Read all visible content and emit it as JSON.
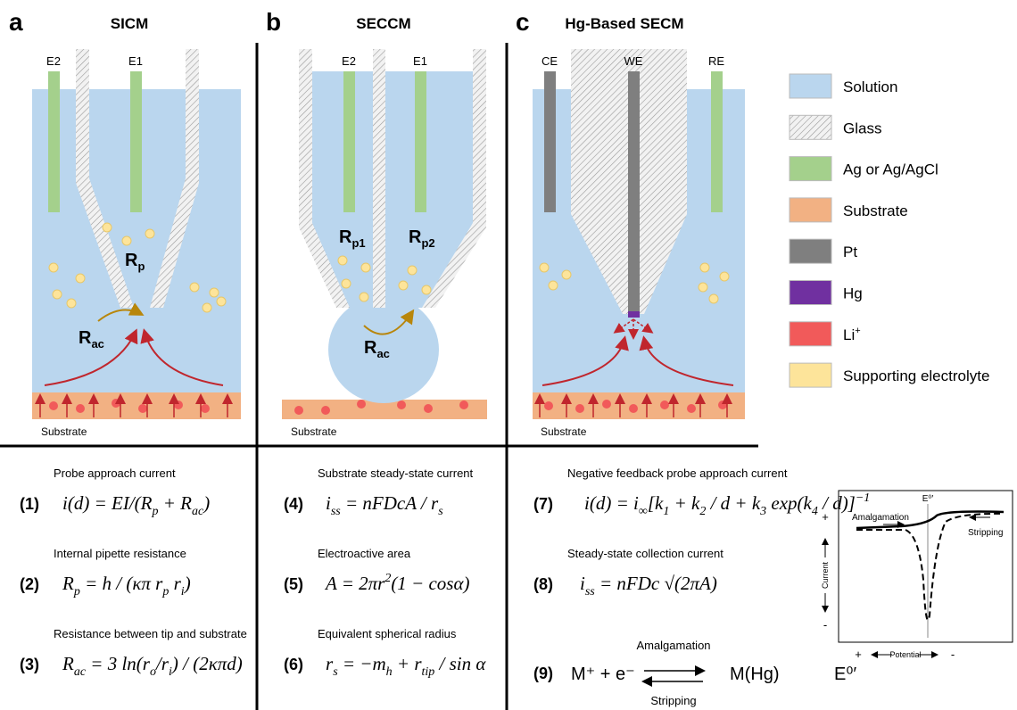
{
  "panels": [
    {
      "letter": "a",
      "title": "SICM",
      "electrodes": [
        "E2",
        "E1"
      ],
      "resistances": [
        {
          "main": "R",
          "sub": "p"
        },
        {
          "main": "R",
          "sub": "ac"
        }
      ],
      "substrate": "Substrate"
    },
    {
      "letter": "b",
      "title": "SECCM",
      "electrodes": [
        "E2",
        "E1"
      ],
      "resistances": [
        {
          "main": "R",
          "sub": "p1"
        },
        {
          "main": "R",
          "sub": "p2"
        },
        {
          "main": "R",
          "sub": "ac"
        }
      ],
      "substrate": "Substrate"
    },
    {
      "letter": "c",
      "title": "Hg-Based SECM",
      "electrodes": [
        "CE",
        "WE",
        "RE"
      ],
      "substrate": "Substrate"
    }
  ],
  "legend": [
    {
      "label": "Solution",
      "color": "#bad6ee"
    },
    {
      "label": "Glass",
      "color": "hatch"
    },
    {
      "label": "Ag or Ag/AgCl",
      "color": "#a4d08c"
    },
    {
      "label": "Substrate",
      "color": "#f2b183"
    },
    {
      "label": "Pt",
      "color": "#7f7f7f"
    },
    {
      "label": "Hg",
      "color": "#7030a0"
    },
    {
      "label": "Li",
      "sup": "+",
      "color": "#f15a5a"
    },
    {
      "label": "Supporting electrolyte",
      "color": "#fde49a"
    }
  ],
  "equations": [
    {
      "number": "(1)",
      "caption": "Probe approach current",
      "formula": [
        "i(d) = EI/(R",
        {
          "sub": "p"
        },
        " + R",
        {
          "sub": "ac"
        },
        ")"
      ]
    },
    {
      "number": "(2)",
      "caption": "Internal pipette resistance",
      "formula": [
        "R",
        {
          "sub": "p"
        },
        " = h / (κπ r",
        {
          "sub": "p"
        },
        " r",
        {
          "sub": "i"
        },
        ")"
      ]
    },
    {
      "number": "(3)",
      "caption": "Resistance between tip and substrate",
      "formula": [
        "R",
        {
          "sub": "ac"
        },
        " = 3 ln(r",
        {
          "sub": "o"
        },
        "/r",
        {
          "sub": "i"
        },
        ") / (2κπd)"
      ]
    },
    {
      "number": "(4)",
      "caption": "Substrate steady-state current",
      "formula": [
        "i",
        {
          "sub": "ss"
        },
        " = nFDcA / r",
        {
          "sub": "s"
        }
      ]
    },
    {
      "number": "(5)",
      "caption": "Electroactive area",
      "formula": [
        "A = 2πr",
        {
          "sup": "2"
        },
        "(1 − cosα)"
      ]
    },
    {
      "number": "(6)",
      "caption": "Equivalent spherical radius",
      "formula": [
        "r",
        {
          "sub": "s"
        },
        " = −m",
        {
          "sub": "h"
        },
        " + r",
        {
          "sub": "tip"
        },
        " / sin α"
      ]
    },
    {
      "number": "(7)",
      "caption": "Negative feedback probe approach current",
      "formula": [
        "i(d) = i",
        {
          "sub": "∞"
        },
        "[k",
        {
          "sub": "1"
        },
        " + k",
        {
          "sub": "2"
        },
        " / d + k",
        {
          "sub": "3"
        },
        " exp(k",
        {
          "sub": "4"
        },
        " / d)]",
        {
          "sup": "−1"
        }
      ]
    },
    {
      "number": "(8)",
      "caption": "Steady-state collection current",
      "formula": [
        "i",
        {
          "sub": "ss"
        },
        " = nFDc √(2πA)"
      ]
    }
  ],
  "reaction": {
    "number": "(9)",
    "left": "M⁺ + e⁻",
    "forward": "Amalgamation",
    "backward": "Stripping",
    "right": "M(Hg)",
    "potential": "E⁰′"
  },
  "inset": {
    "potential": "E⁰′",
    "forward": "Amalgamation",
    "backward": "Stripping",
    "y_axis": "Current",
    "x_axis": "Potential",
    "y_plus": "+",
    "y_minus": "-",
    "x_plus": "+",
    "x_minus": "-"
  }
}
